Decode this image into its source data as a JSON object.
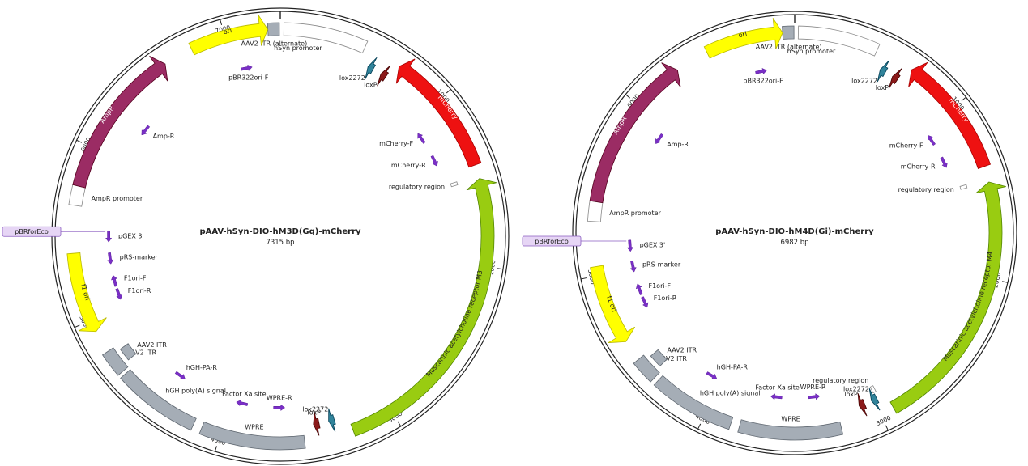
{
  "maps": [
    {
      "name": "pAAV-hSyn-DIO-hM3D(Gq)-mCherry",
      "size_label": "7315 bp",
      "length": 7315,
      "ticks": [
        {
          "pos": 1000,
          "label": "1000"
        },
        {
          "pos": 2000,
          "label": "2000"
        },
        {
          "pos": 3000,
          "label": "3000"
        },
        {
          "pos": 4000,
          "label": "4000"
        },
        {
          "pos": 5000,
          "label": "5000"
        },
        {
          "pos": 6000,
          "label": "6000"
        },
        {
          "pos": 7000,
          "label": "7000"
        }
      ],
      "features": [
        {
          "label": "AAV2 ITR (alternate)",
          "start": 7245,
          "end": 7310,
          "color": "#a5adb6",
          "shape": "box",
          "lane": 0
        },
        {
          "label": "hSyn promoter",
          "start": 20,
          "end": 490,
          "color": "#ffffff",
          "shape": "box",
          "lane": 0
        },
        {
          "label": "lox2272",
          "start": 555,
          "end": 590,
          "color": "#31849b",
          "shape": "arrow",
          "strand": -1,
          "lane": 1
        },
        {
          "label": "loxP",
          "start": 645,
          "end": 680,
          "color": "#8b1a1a",
          "shape": "arrow",
          "strand": -1,
          "lane": 1
        },
        {
          "label": "mCherry",
          "start": 710,
          "end": 1420,
          "color": "#ee1111",
          "shape": "arrow",
          "strand": -1,
          "lane": 0
        },
        {
          "label": "regulatory region",
          "start": 1480,
          "end": 1500,
          "color": "#ffffff",
          "shape": "box",
          "lane": 2
        },
        {
          "label": "Muscarinic acetylcholine receptor M3",
          "start": 1500,
          "end": 3240,
          "color": "#99cc11",
          "shape": "arrow",
          "strand": -1,
          "lane": 0
        },
        {
          "label": "lox2272",
          "start": 3325,
          "end": 3360,
          "color": "#31849b",
          "shape": "arrow",
          "strand": 1,
          "lane": 1
        },
        {
          "label": "loxP",
          "start": 3420,
          "end": 3455,
          "color": "#8b1a1a",
          "shape": "arrow",
          "strand": 1,
          "lane": 1
        },
        {
          "label": "WPRE",
          "start": 3520,
          "end": 4110,
          "color": "#a5adb6",
          "shape": "box",
          "lane": 0
        },
        {
          "label": "hGH poly(A) signal",
          "start": 4160,
          "end": 4640,
          "color": "#a5adb6",
          "shape": "box",
          "lane": 0
        },
        {
          "label": "AAV2 ITR",
          "start": 4660,
          "end": 4800,
          "color": "#a5adb6",
          "shape": "box",
          "lane": 0
        },
        {
          "label": "AAV2 ITR",
          "start": 4690,
          "end": 4770,
          "color": "#a5adb6",
          "shape": "box",
          "lane": 1
        },
        {
          "label": "f1 ori",
          "start": 4930,
          "end": 5390,
          "color": "#ffff00",
          "shape": "arrow",
          "strand": -1,
          "lane": 0
        },
        {
          "label": "AmpR promoter",
          "start": 5660,
          "end": 5770,
          "color": "#ffffff",
          "shape": "box",
          "lane": 0
        },
        {
          "label": "AmpR",
          "start": 5770,
          "end": 6630,
          "color": "#9b2c64",
          "shape": "arrow",
          "strand": 1,
          "lane": 0
        },
        {
          "label": "ori",
          "start": 6800,
          "end": 7245,
          "color": "#ffff00",
          "shape": "arrow",
          "strand": 1,
          "lane": 0
        }
      ],
      "primers": [
        {
          "label": "pBR322ori-F",
          "pos": 7085,
          "strand": 1
        },
        {
          "label": "mCherry-F",
          "pos": 1120,
          "strand": -1
        },
        {
          "label": "mCherry-R",
          "pos": 1300,
          "strand": 1
        },
        {
          "label": "Amp-R",
          "pos": 6260,
          "strand": -1
        },
        {
          "label": "pGEX 3'",
          "pos": 5485,
          "strand": -1
        },
        {
          "label": "pRS-marker",
          "pos": 5335,
          "strand": -1
        },
        {
          "label": "F1ori-F",
          "pos": 5180,
          "strand": 1
        },
        {
          "label": "F1ori-R",
          "pos": 5085,
          "strand": -1
        },
        {
          "label": "hGH-PA-R",
          "pos": 4380,
          "strand": -1
        },
        {
          "label": "Factor Xa site",
          "pos": 3920,
          "strand": 1
        },
        {
          "label": "WPRE-R",
          "pos": 3665,
          "strand": -1
        }
      ],
      "callout": {
        "label": "pBRforEco",
        "pos": 5518
      }
    },
    {
      "name": "pAAV-hSyn-DIO-hM4D(Gi)-mCherry",
      "size_label": "6982 bp",
      "length": 6982,
      "ticks": [
        {
          "pos": 1000,
          "label": "1000"
        },
        {
          "pos": 2000,
          "label": "2000"
        },
        {
          "pos": 3000,
          "label": "3000"
        },
        {
          "pos": 4000,
          "label": "4000"
        },
        {
          "pos": 5000,
          "label": "5000"
        },
        {
          "pos": 6000,
          "label": "6000"
        }
      ],
      "features": [
        {
          "label": "AAV2 ITR (alternate)",
          "start": 6915,
          "end": 6978,
          "color": "#a5adb6",
          "shape": "box",
          "lane": 0
        },
        {
          "label": "hSyn promoter",
          "start": 20,
          "end": 470,
          "color": "#ffffff",
          "shape": "box",
          "lane": 0
        },
        {
          "label": "lox2272",
          "start": 535,
          "end": 570,
          "color": "#31849b",
          "shape": "arrow",
          "strand": -1,
          "lane": 1
        },
        {
          "label": "loxP",
          "start": 620,
          "end": 655,
          "color": "#8b1a1a",
          "shape": "arrow",
          "strand": -1,
          "lane": 1
        },
        {
          "label": "mCherry",
          "start": 690,
          "end": 1370,
          "color": "#ee1111",
          "shape": "arrow",
          "strand": -1,
          "lane": 0
        },
        {
          "label": "regulatory region",
          "start": 1440,
          "end": 1460,
          "color": "#ffffff",
          "shape": "box",
          "lane": 2
        },
        {
          "label": "Muscarinic acetylcholine receptor M4",
          "start": 1460,
          "end": 2920,
          "color": "#99cc11",
          "shape": "arrow",
          "strand": -1,
          "lane": 0
        },
        {
          "label": "lox2272",
          "start": 2980,
          "end": 3015,
          "color": "#31849b",
          "shape": "arrow",
          "strand": 1,
          "lane": 1
        },
        {
          "label": "loxP",
          "start": 3060,
          "end": 3095,
          "color": "#8b1a1a",
          "shape": "arrow",
          "strand": 1,
          "lane": 1
        },
        {
          "label": "regulatory region",
          "start": 2965,
          "end": 2985,
          "color": "#ffffff",
          "shape": "box",
          "lane": 2
        },
        {
          "label": "WPRE",
          "start": 3230,
          "end": 3800,
          "color": "#a5adb6",
          "shape": "box",
          "lane": 0
        },
        {
          "label": "hGH poly(A) signal",
          "start": 3850,
          "end": 4320,
          "color": "#a5adb6",
          "shape": "box",
          "lane": 0
        },
        {
          "label": "AAV2 ITR",
          "start": 4345,
          "end": 4480,
          "color": "#a5adb6",
          "shape": "box",
          "lane": 0
        },
        {
          "label": "AAV2 ITR",
          "start": 4370,
          "end": 4450,
          "color": "#a5adb6",
          "shape": "box",
          "lane": 1
        },
        {
          "label": "f1 ori",
          "start": 4600,
          "end": 5050,
          "color": "#ffff00",
          "shape": "arrow",
          "strand": -1,
          "lane": 0
        },
        {
          "label": "AmpR promoter",
          "start": 5300,
          "end": 5410,
          "color": "#ffffff",
          "shape": "box",
          "lane": 0
        },
        {
          "label": "AmpR",
          "start": 5410,
          "end": 6290,
          "color": "#9b2c64",
          "shape": "arrow",
          "strand": 1,
          "lane": 0
        },
        {
          "label": "ori",
          "start": 6480,
          "end": 6915,
          "color": "#ffff00",
          "shape": "arrow",
          "strand": 1,
          "lane": 0
        }
      ],
      "primers": [
        {
          "label": "pBR322ori-F",
          "pos": 6755,
          "strand": 1
        },
        {
          "label": "mCherry-F",
          "pos": 1080,
          "strand": -1
        },
        {
          "label": "mCherry-R",
          "pos": 1255,
          "strand": 1
        },
        {
          "label": "Amp-R",
          "pos": 5910,
          "strand": -1
        },
        {
          "label": "pGEX 3'",
          "pos": 5150,
          "strand": -1
        },
        {
          "label": "pRS-marker",
          "pos": 5010,
          "strand": -1
        },
        {
          "label": "F1ori-F",
          "pos": 4850,
          "strand": 1
        },
        {
          "label": "F1ori-R",
          "pos": 4755,
          "strand": -1
        },
        {
          "label": "hGH-PA-R",
          "pos": 4075,
          "strand": -1
        },
        {
          "label": "Factor Xa site",
          "pos": 3615,
          "strand": 1
        },
        {
          "label": "WPRE-R",
          "pos": 3360,
          "strand": -1
        }
      ],
      "callout": {
        "label": "pBRforEco",
        "pos": 5182
      }
    }
  ],
  "colors": {
    "ring": "#222222",
    "primer": "#7a2fc7",
    "callout_fill": "#e6d5f5",
    "callout_stroke": "#8a5cc0"
  }
}
